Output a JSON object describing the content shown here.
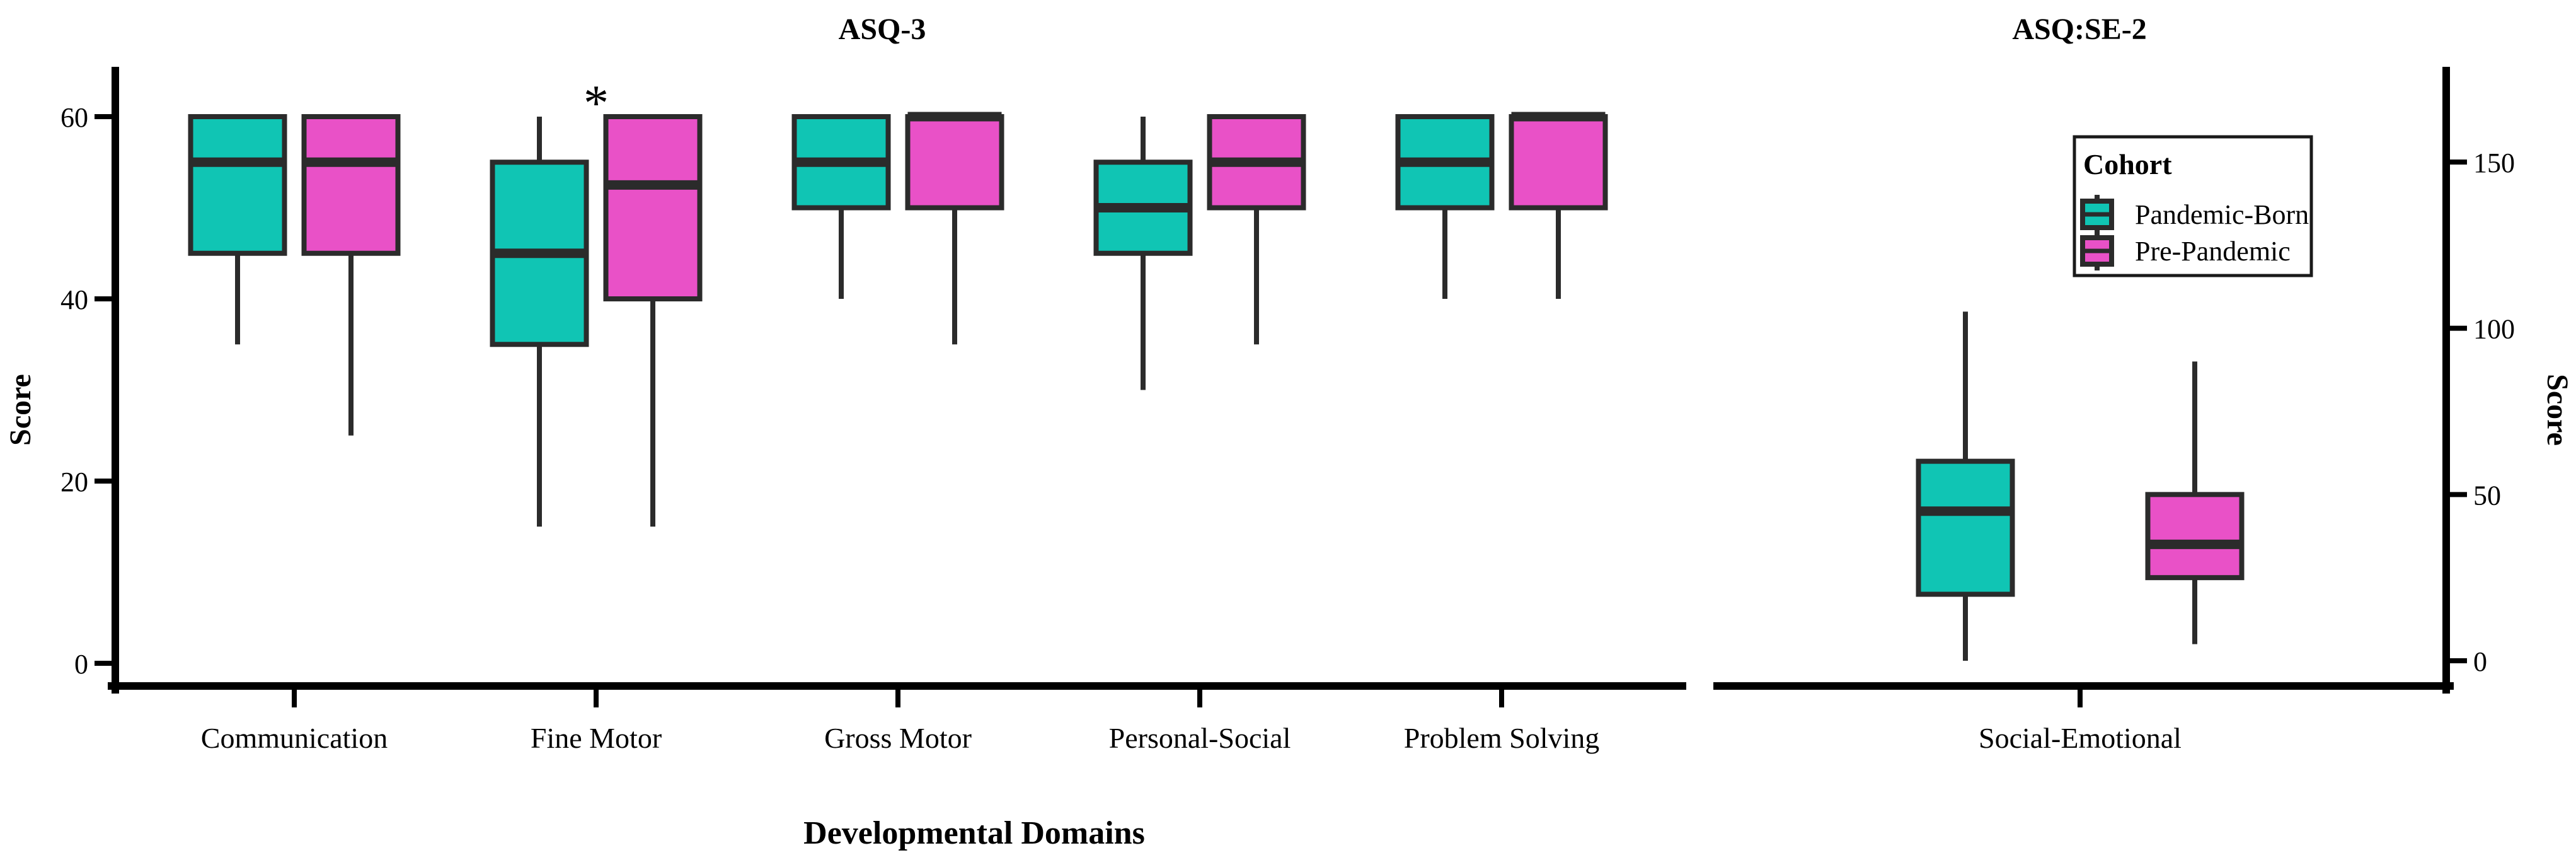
{
  "x_axis_title": "Developmental Domains",
  "legend": {
    "title": "Cohort",
    "items": [
      {
        "label": "Pandemic-Born",
        "color": "#10C5B4"
      },
      {
        "label": "Pre-Pandemic",
        "color": "#E951C7"
      }
    ]
  },
  "colors": {
    "box_outline": "#2B2B2B",
    "axis": "#000000",
    "text": "#000000",
    "background": "#FFFFFF"
  },
  "chart_data": {
    "type": "boxplot",
    "cohorts": [
      "Pandemic-Born",
      "Pre-Pandemic"
    ],
    "panels": [
      {
        "title": "ASQ-3",
        "ylabel": "Score",
        "y_axis": {
          "side": "left",
          "ticks": [
            0,
            20,
            40,
            60
          ],
          "range": [
            0,
            63
          ]
        },
        "categories": [
          "Communication",
          "Fine Motor",
          "Gross Motor",
          "Personal-Social",
          "Problem Solving"
        ],
        "series": [
          {
            "name": "Pandemic-Born",
            "boxes": [
              {
                "min": 35,
                "q1": 45,
                "median": 55,
                "q3": 60,
                "max": 60
              },
              {
                "min": 15,
                "q1": 35,
                "median": 45,
                "q3": 55,
                "max": 60
              },
              {
                "min": 40,
                "q1": 50,
                "median": 55,
                "q3": 60,
                "max": 60
              },
              {
                "min": 30,
                "q1": 45,
                "median": 50,
                "q3": 55,
                "max": 60
              },
              {
                "min": 40,
                "q1": 50,
                "median": 55,
                "q3": 60,
                "max": 60
              }
            ]
          },
          {
            "name": "Pre-Pandemic",
            "boxes": [
              {
                "min": 25,
                "q1": 45,
                "median": 55,
                "q3": 60,
                "max": 60
              },
              {
                "min": 15,
                "q1": 40,
                "median": 52.5,
                "q3": 60,
                "max": 60
              },
              {
                "min": 35,
                "q1": 50,
                "median": 60,
                "q3": 60,
                "max": 60
              },
              {
                "min": 35,
                "q1": 50,
                "median": 55,
                "q3": 60,
                "max": 60
              },
              {
                "min": 40,
                "q1": 50,
                "median": 60,
                "q3": 60,
                "max": 60
              }
            ]
          }
        ]
      },
      {
        "title": "ASQ:SE-2",
        "ylabel": "Score",
        "y_axis": {
          "side": "right",
          "ticks": [
            0,
            50,
            100,
            150
          ],
          "range": [
            0,
            165
          ]
        },
        "categories": [
          "Social-Emotional"
        ],
        "series": [
          {
            "name": "Pandemic-Born",
            "boxes": [
              {
                "min": 0,
                "q1": 20,
                "median": 45,
                "q3": 60,
                "max": 105
              }
            ]
          },
          {
            "name": "Pre-Pandemic",
            "boxes": [
              {
                "min": 5,
                "q1": 25,
                "median": 35,
                "q3": 50,
                "max": 90
              }
            ]
          }
        ]
      }
    ],
    "annotations": [
      {
        "text": "*",
        "panel": "ASQ-3",
        "category": "Fine Motor"
      }
    ]
  }
}
